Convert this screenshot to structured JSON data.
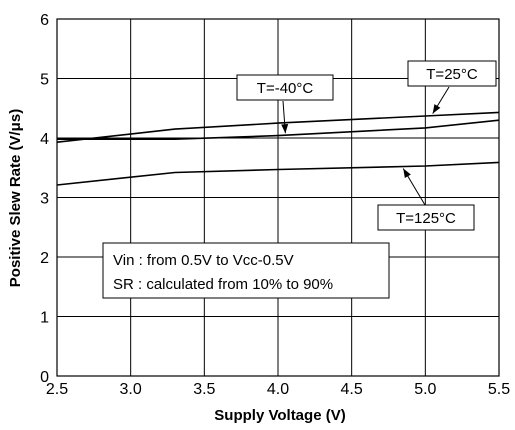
{
  "chart_data": {
    "type": "line",
    "xlabel": "Supply Voltage (V)",
    "ylabel": "Positive Slew Rate (V/μs)",
    "xlim": [
      2.5,
      5.5
    ],
    "ylim": [
      0,
      6
    ],
    "x_ticks": [
      2.5,
      3.0,
      3.5,
      4.0,
      4.5,
      5.0,
      5.5
    ],
    "x_tick_labels": [
      "2.5",
      "3.0",
      "3.5",
      "4.0",
      "4.5",
      "5.0",
      "5.5"
    ],
    "y_ticks": [
      0,
      1,
      2,
      3,
      4,
      5,
      6
    ],
    "y_tick_labels": [
      "0",
      "1",
      "2",
      "3",
      "4",
      "5",
      "6"
    ],
    "grid": true,
    "series": [
      {
        "name": "T=-40°C",
        "x": [
          2.5,
          3.3,
          4.0,
          5.0,
          5.5
        ],
        "y": [
          3.93,
          4.15,
          4.25,
          4.37,
          4.43
        ]
      },
      {
        "name": "T=25°C",
        "x": [
          2.5,
          3.3,
          4.0,
          5.0,
          5.5
        ],
        "y": [
          3.98,
          3.98,
          4.04,
          4.17,
          4.3
        ]
      },
      {
        "name": "T=125°C",
        "x": [
          2.5,
          3.3,
          4.0,
          5.0,
          5.5
        ],
        "y": [
          3.21,
          3.42,
          3.47,
          3.53,
          3.59
        ]
      }
    ],
    "annotations": [
      "Vin : from 0.5V to Vcc-0.5V",
      "SR : calculated from 10% to 90%"
    ]
  }
}
